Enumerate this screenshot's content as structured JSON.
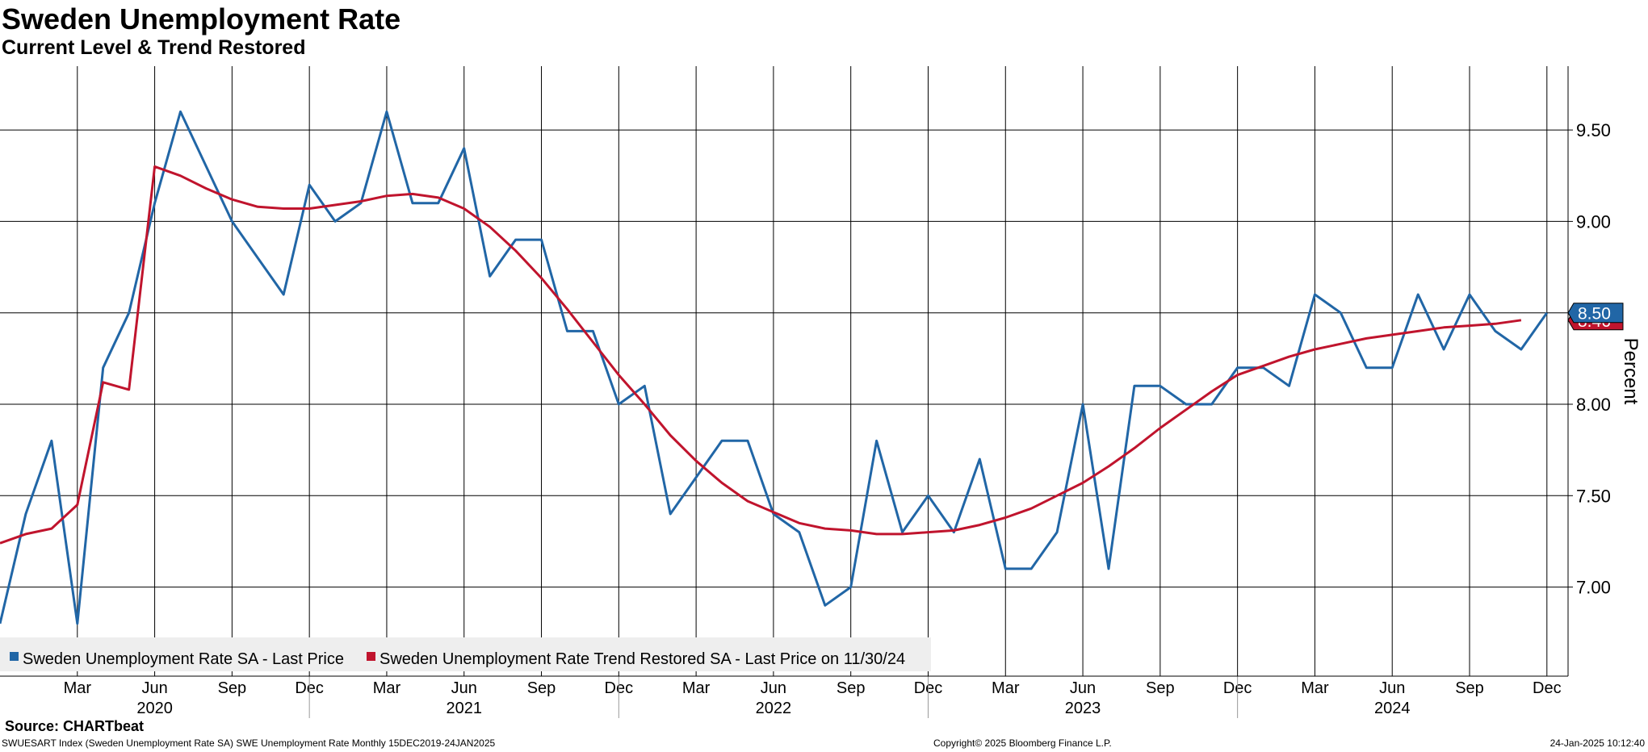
{
  "header": {
    "title": "Sweden Unemployment Rate",
    "subtitle": "Current Level & Trend Restored"
  },
  "footer": {
    "source": "Source: CHARTbeat",
    "index_line": "SWUESART Index (Sweden Unemployment Rate SA) SWE Unemployment Rate  Monthly 15DEC2019-24JAN2025",
    "copyright": "Copyright© 2025 Bloomberg Finance L.P.",
    "timestamp": "24-Jan-2025 10:12:40"
  },
  "colors": {
    "actual": "#2166a6",
    "trend": "#c0142d",
    "grid": "#000000",
    "legend_bg": "#eeeeee"
  },
  "chart_data": {
    "type": "line",
    "ylabel": "Percent",
    "y_axis_side": "right",
    "ylim": [
      6.55,
      9.85
    ],
    "y_ticks": [
      7.0,
      7.5,
      8.0,
      8.5,
      9.0,
      9.5
    ],
    "y_tick_labels": [
      "7.00",
      "7.50",
      "8.00",
      "8.50",
      "9.00",
      "9.50"
    ],
    "x_start": "Dec 2019",
    "x_end": "Dec 2024",
    "grid": true,
    "month_ticks": [
      {
        "label": "Mar",
        "month": "2020-03"
      },
      {
        "label": "Jun",
        "month": "2020-06"
      },
      {
        "label": "Sep",
        "month": "2020-09"
      },
      {
        "label": "Dec",
        "month": "2020-12"
      },
      {
        "label": "Mar",
        "month": "2021-03"
      },
      {
        "label": "Jun",
        "month": "2021-06"
      },
      {
        "label": "Sep",
        "month": "2021-09"
      },
      {
        "label": "Dec",
        "month": "2021-12"
      },
      {
        "label": "Mar",
        "month": "2022-03"
      },
      {
        "label": "Jun",
        "month": "2022-06"
      },
      {
        "label": "Sep",
        "month": "2022-09"
      },
      {
        "label": "Dec",
        "month": "2022-12"
      },
      {
        "label": "Mar",
        "month": "2023-03"
      },
      {
        "label": "Jun",
        "month": "2023-06"
      },
      {
        "label": "Sep",
        "month": "2023-09"
      },
      {
        "label": "Dec",
        "month": "2023-12"
      },
      {
        "label": "Mar",
        "month": "2024-03"
      },
      {
        "label": "Jun",
        "month": "2024-06"
      },
      {
        "label": "Sep",
        "month": "2024-09"
      },
      {
        "label": "Dec",
        "month": "2024-12"
      }
    ],
    "year_labels": [
      {
        "label": "2020",
        "month": "2020-06"
      },
      {
        "label": "2021",
        "month": "2021-06"
      },
      {
        "label": "2022",
        "month": "2022-06"
      },
      {
        "label": "2023",
        "month": "2023-06"
      },
      {
        "label": "2024",
        "month": "2024-06"
      }
    ],
    "year_separators": [
      "2020-12",
      "2021-12",
      "2022-12",
      "2023-12"
    ],
    "legend": {
      "placement": "bottom-left",
      "entries": [
        "Sweden Unemployment Rate SA - Last Price",
        "Sweden Unemployment Rate Trend Restored SA - Last Price on 11/30/24"
      ]
    },
    "last_value_labels": [
      {
        "series": "actual",
        "value": 8.5,
        "text": "8.50"
      },
      {
        "series": "trend",
        "value": 8.46,
        "text": "8.46"
      }
    ],
    "series": [
      {
        "name": "Sweden Unemployment Rate SA - Last Price",
        "key": "actual",
        "start": "2019-12",
        "values": [
          6.8,
          7.4,
          7.8,
          6.8,
          8.2,
          8.5,
          9.1,
          9.6,
          9.3,
          9.0,
          8.8,
          8.6,
          9.2,
          9.0,
          9.1,
          9.6,
          9.1,
          9.1,
          9.4,
          8.7,
          8.9,
          8.9,
          8.4,
          8.4,
          8.0,
          8.1,
          7.4,
          7.6,
          7.8,
          7.8,
          7.4,
          7.3,
          6.9,
          7.0,
          7.8,
          7.3,
          7.5,
          7.3,
          7.7,
          7.1,
          7.1,
          7.3,
          8.0,
          7.1,
          8.1,
          8.1,
          8.0,
          8.0,
          8.2,
          8.2,
          8.1,
          8.6,
          8.5,
          8.2,
          8.2,
          8.6,
          8.3,
          8.6,
          8.4,
          8.3,
          8.5
        ]
      },
      {
        "name": "Sweden Unemployment Rate Trend Restored SA - Last Price on 11/30/24",
        "key": "trend",
        "start": "2019-12",
        "values": [
          7.24,
          7.29,
          7.32,
          7.45,
          8.12,
          8.08,
          9.3,
          9.25,
          9.18,
          9.12,
          9.08,
          9.07,
          9.07,
          9.09,
          9.11,
          9.14,
          9.15,
          9.13,
          9.07,
          8.97,
          8.84,
          8.69,
          8.52,
          8.34,
          8.16,
          8.0,
          7.83,
          7.69,
          7.57,
          7.47,
          7.41,
          7.35,
          7.32,
          7.31,
          7.29,
          7.29,
          7.3,
          7.31,
          7.34,
          7.38,
          7.43,
          7.5,
          7.57,
          7.66,
          7.76,
          7.87,
          7.97,
          8.07,
          8.16,
          8.21,
          8.26,
          8.3,
          8.33,
          8.36,
          8.38,
          8.4,
          8.42,
          8.43,
          8.44,
          8.46
        ]
      }
    ]
  }
}
